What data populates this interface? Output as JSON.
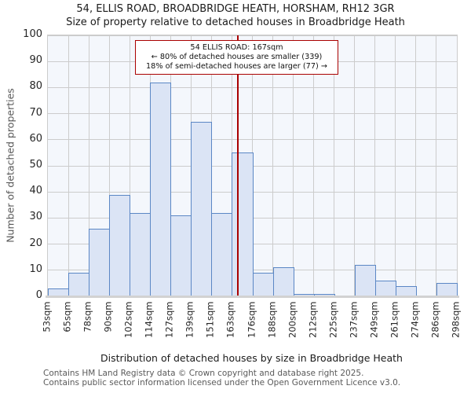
{
  "title": "54, ELLIS ROAD, BROADBRIDGE HEATH, HORSHAM, RH12 3GR",
  "subtitle": "Size of property relative to detached houses in Broadbridge Heath",
  "annotation": {
    "line1": "54 ELLIS ROAD: 167sqm",
    "line2": "← 80% of detached houses are smaller (339)",
    "line3": "18% of semi-detached houses are larger (77) →"
  },
  "chart_data": {
    "type": "bar",
    "title": "54, ELLIS ROAD, BROADBRIDGE HEATH, HORSHAM, RH12 3GR",
    "subtitle": "Size of property relative to detached houses in Broadbridge Heath",
    "xlabel": "Distribution of detached houses by size in Broadbridge Heath",
    "ylabel": "Number of detached properties",
    "bin_edges_sqm": [
      53,
      65,
      78,
      90,
      102,
      114,
      127,
      139,
      151,
      163,
      176,
      188,
      200,
      212,
      225,
      237,
      249,
      261,
      274,
      286,
      298
    ],
    "x_tick_labels": [
      "53sqm",
      "65sqm",
      "78sqm",
      "90sqm",
      "102sqm",
      "114sqm",
      "127sqm",
      "139sqm",
      "151sqm",
      "163sqm",
      "176sqm",
      "188sqm",
      "200sqm",
      "212sqm",
      "225sqm",
      "237sqm",
      "249sqm",
      "261sqm",
      "274sqm",
      "286sqm",
      "298sqm"
    ],
    "values": [
      3,
      9,
      26,
      39,
      32,
      82,
      31,
      67,
      32,
      55,
      9,
      11,
      1,
      1,
      0,
      12,
      6,
      4,
      0,
      5
    ],
    "ylim": [
      0,
      100
    ],
    "y_ticks": [
      0,
      10,
      20,
      30,
      40,
      50,
      60,
      70,
      80,
      90,
      100
    ],
    "grid": true,
    "legend": "none",
    "marker_value_sqm": 167,
    "colors": {
      "bar_fill": "#dbe4f5",
      "bar_border": "#5b87c5",
      "marker_line": "#aa0000",
      "annotation_border": "#aa0000",
      "grid_line": "#cccccc",
      "plot_background": "#f4f7fc"
    }
  },
  "footer": {
    "line1": "Contains HM Land Registry data © Crown copyright and database right 2025.",
    "line2": "Contains public sector information licensed under the Open Government Licence v3.0."
  }
}
